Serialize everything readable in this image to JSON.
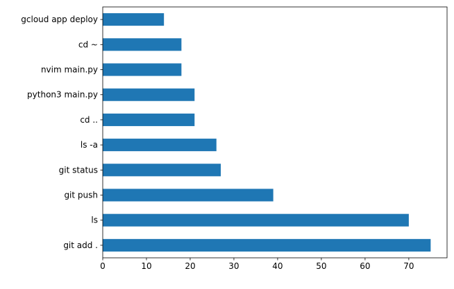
{
  "chart_data": {
    "type": "bar",
    "orientation": "horizontal",
    "title": "",
    "xlabel": "",
    "ylabel": "",
    "categories": [
      "git add .",
      "ls",
      "git push",
      "git status",
      "ls -a",
      "cd ..",
      "python3 main.py",
      "nvim main.py",
      "cd ~",
      "gcloud app deploy"
    ],
    "values": [
      75,
      70,
      39,
      27,
      26,
      21,
      21,
      18,
      18,
      14
    ],
    "xlim": [
      0,
      78.75
    ],
    "xticks": [
      0,
      10,
      20,
      30,
      40,
      50,
      60,
      70
    ],
    "grid": false,
    "legend": "none",
    "colors": {
      "bar": "#1f77b4",
      "axis": "#000000"
    }
  }
}
